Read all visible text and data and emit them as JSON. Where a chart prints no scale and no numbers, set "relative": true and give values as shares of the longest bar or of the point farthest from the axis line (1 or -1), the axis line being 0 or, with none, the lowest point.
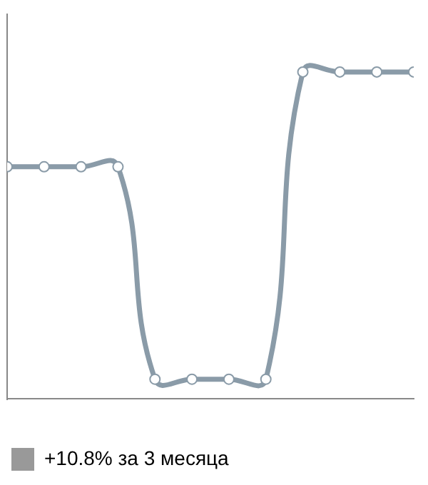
{
  "chart_data": {
    "type": "line",
    "relative": true,
    "categories": [
      null,
      null,
      null,
      null,
      null,
      null,
      null,
      null,
      null,
      null,
      null,
      null
    ],
    "series": [
      {
        "name": "+10.8% за 3 месяца",
        "color": "#8a9ba8",
        "values": [
          0.71,
          0.71,
          0.71,
          0.71,
          0.06,
          0.06,
          0.06,
          0.06,
          1,
          1,
          1,
          1
        ]
      }
    ],
    "legend": "bottom",
    "marker": "circle",
    "line_style": "solid"
  }
}
